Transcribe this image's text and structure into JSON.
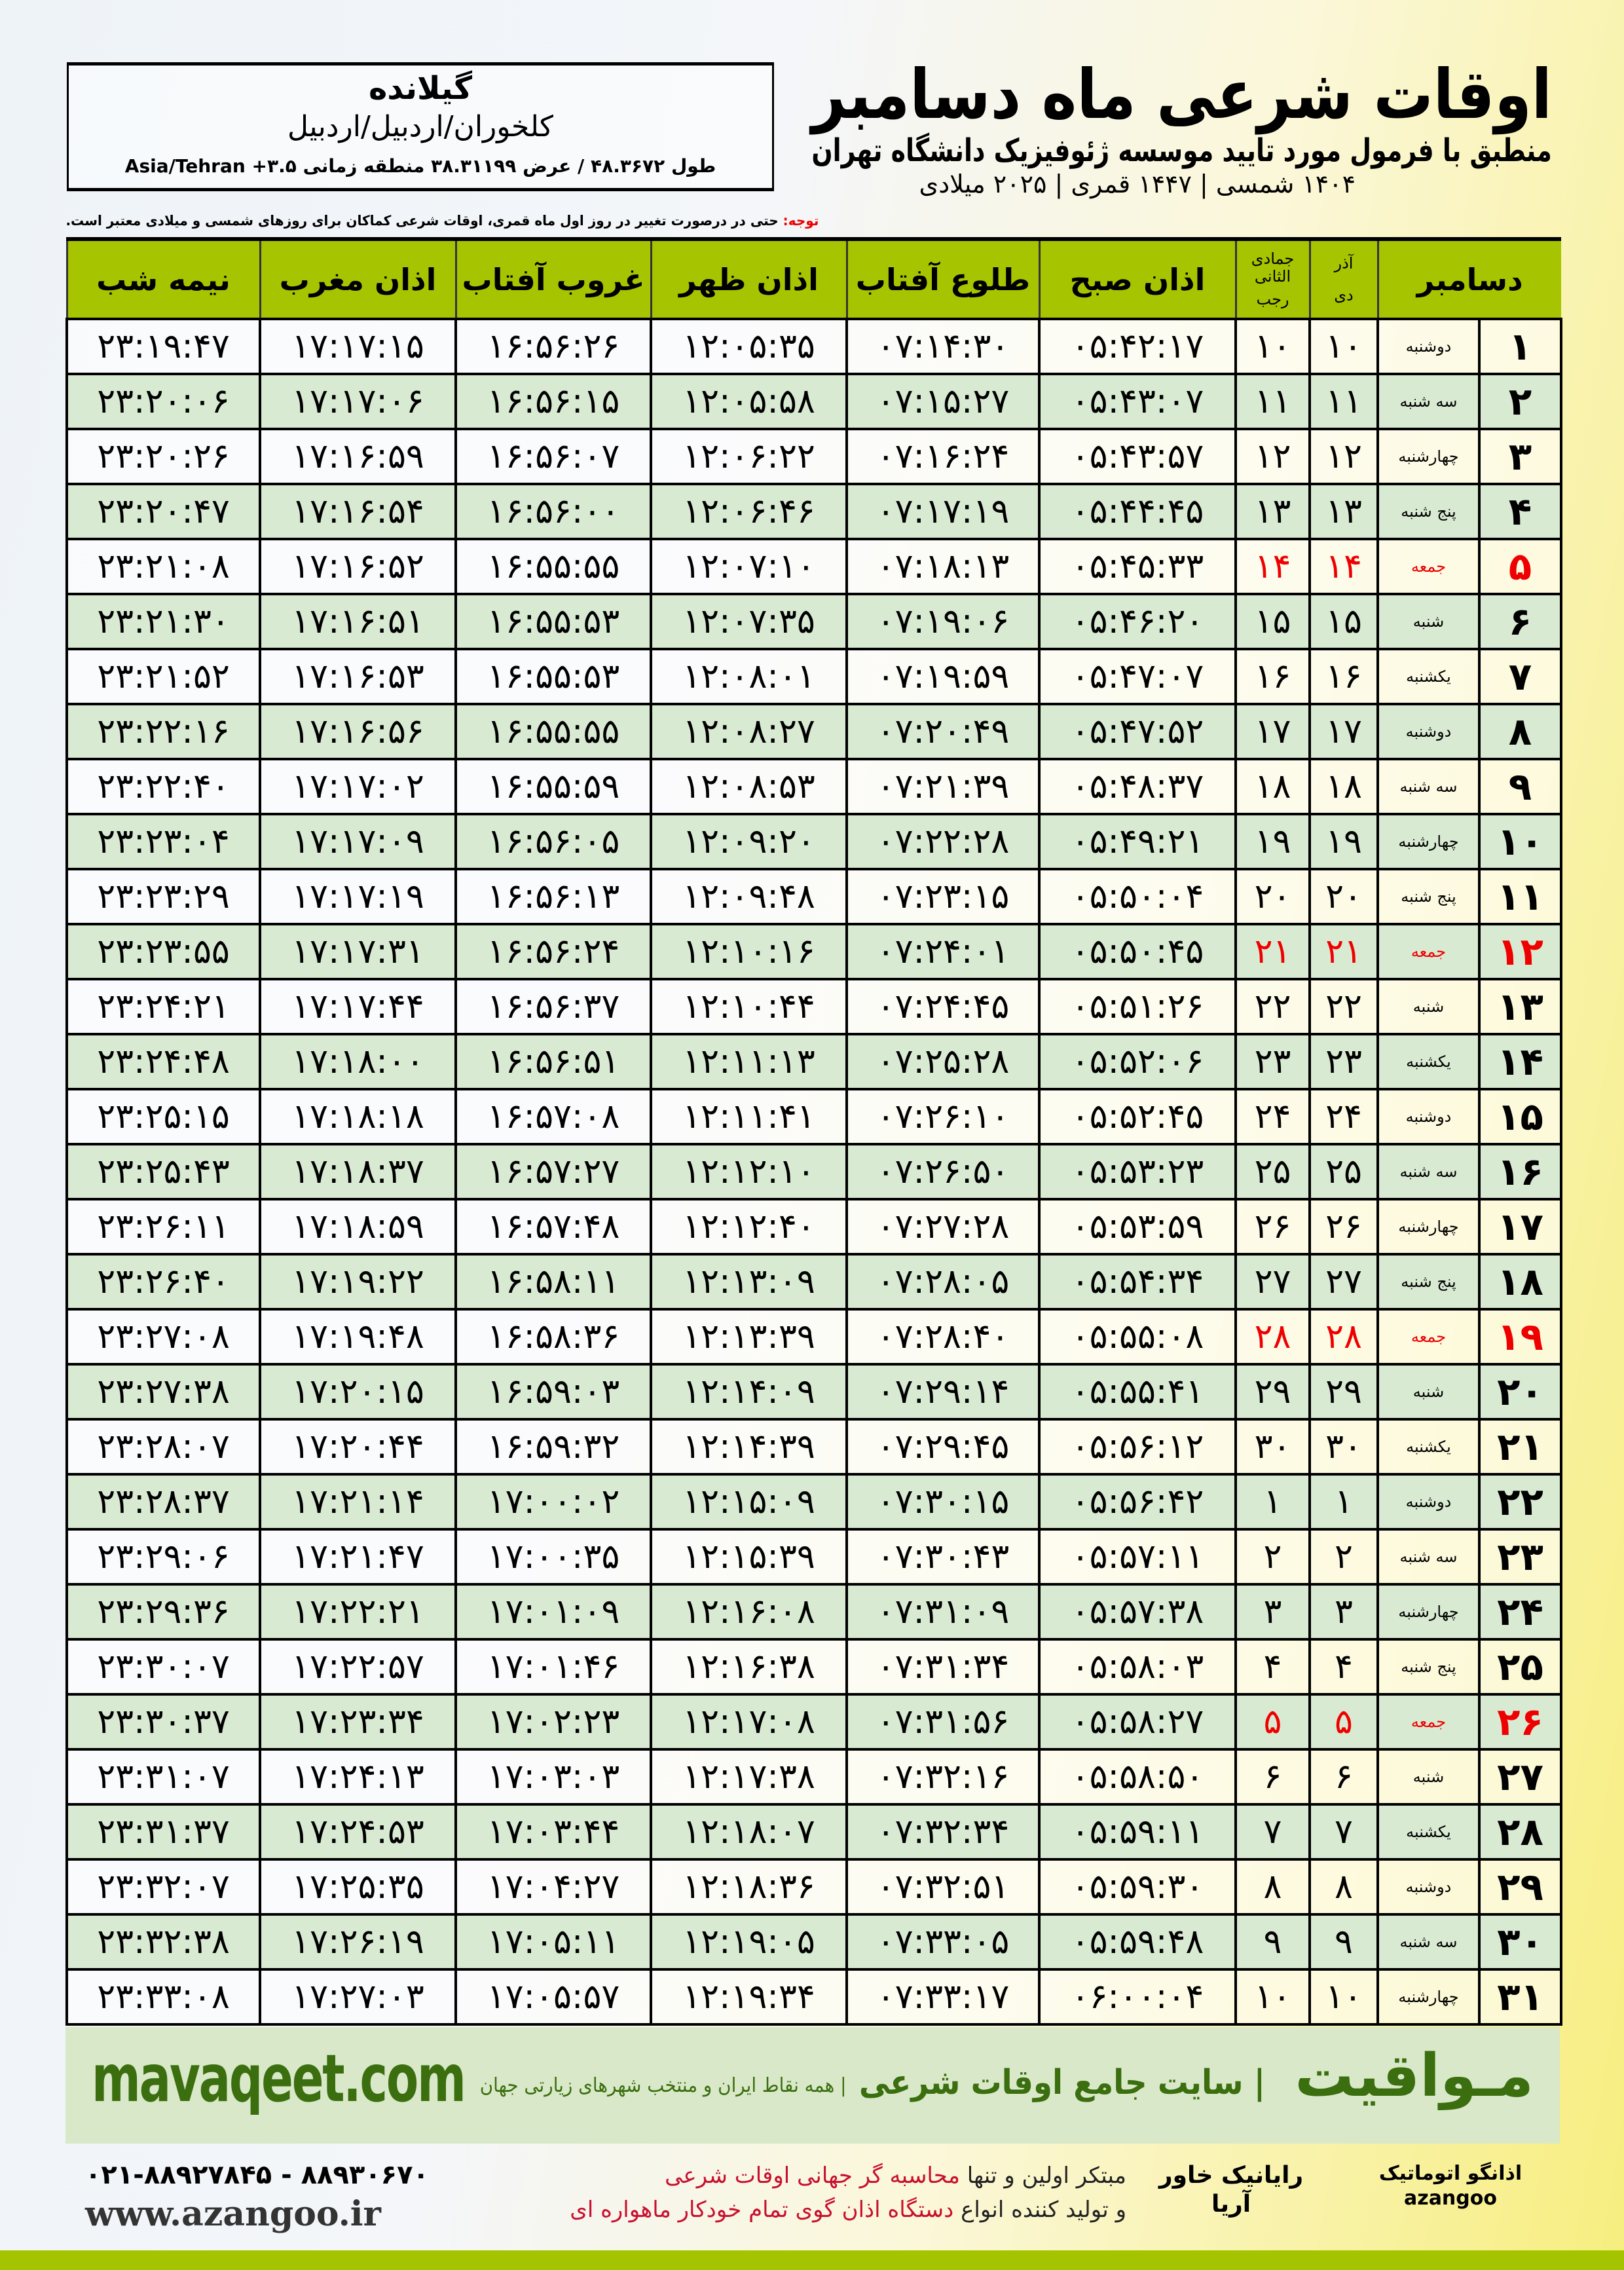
{
  "header": {
    "title": "اوقات شرعی ماه دسامبر",
    "subtitle": "منطبق با فرمول مورد تایید موسسه ژئوفیزیک دانشگاه تهران",
    "years": "۱۴۰۴ شمسی | ۱۴۴۷ قمری | ۲۰۲۵ میلادی"
  },
  "location": {
    "city": "گیلانده",
    "path": "کلخوران/اردبیل/اردبیل",
    "geo": "طول ۴۸.۳۶۷۲ / عرض ۳۸.۳۱۱۹۹ منطقه زمانی ۳.۵+ Asia/Tehran"
  },
  "note": {
    "label": "توجه:",
    "text": " حتی در درصورت تغییر در روز اول ماه قمری، اوقات شرعی کماکان برای روزهای شمسی و میلادی معتبر است."
  },
  "table": {
    "headers": {
      "month": "دسامبر",
      "shamsi_top": "آذر",
      "shamsi_bottom": "دی",
      "qamari_top": "جمادی الثانی",
      "qamari_bottom": "رجب",
      "sobh": "اذان صبح",
      "tolu": "طلوع آفتاب",
      "zohr": "اذان ظهر",
      "ghorub": "غروب آفتاب",
      "maghrib": "اذان مغرب",
      "nimeshab": "نیمه شب"
    },
    "rows": [
      [
        "۱",
        "دوشنبه",
        "۱۰",
        "۱۰",
        "۰۵:۴۲:۱۷",
        "۰۷:۱۴:۳۰",
        "۱۲:۰۵:۳۵",
        "۱۶:۵۶:۲۶",
        "۱۷:۱۷:۱۵",
        "۲۳:۱۹:۴۷"
      ],
      [
        "۲",
        "سه شنبه",
        "۱۱",
        "۱۱",
        "۰۵:۴۳:۰۷",
        "۰۷:۱۵:۲۷",
        "۱۲:۰۵:۵۸",
        "۱۶:۵۶:۱۵",
        "۱۷:۱۷:۰۶",
        "۲۳:۲۰:۰۶"
      ],
      [
        "۳",
        "چهارشنبه",
        "۱۲",
        "۱۲",
        "۰۵:۴۳:۵۷",
        "۰۷:۱۶:۲۴",
        "۱۲:۰۶:۲۲",
        "۱۶:۵۶:۰۷",
        "۱۷:۱۶:۵۹",
        "۲۳:۲۰:۲۶"
      ],
      [
        "۴",
        "پنج شنبه",
        "۱۳",
        "۱۳",
        "۰۵:۴۴:۴۵",
        "۰۷:۱۷:۱۹",
        "۱۲:۰۶:۴۶",
        "۱۶:۵۶:۰۰",
        "۱۷:۱۶:۵۴",
        "۲۳:۲۰:۴۷"
      ],
      [
        "۵",
        "جمعه",
        "۱۴",
        "۱۴",
        "۰۵:۴۵:۳۳",
        "۰۷:۱۸:۱۳",
        "۱۲:۰۷:۱۰",
        "۱۶:۵۵:۵۵",
        "۱۷:۱۶:۵۲",
        "۲۳:۲۱:۰۸"
      ],
      [
        "۶",
        "شنبه",
        "۱۵",
        "۱۵",
        "۰۵:۴۶:۲۰",
        "۰۷:۱۹:۰۶",
        "۱۲:۰۷:۳۵",
        "۱۶:۵۵:۵۳",
        "۱۷:۱۶:۵۱",
        "۲۳:۲۱:۳۰"
      ],
      [
        "۷",
        "یکشنبه",
        "۱۶",
        "۱۶",
        "۰۵:۴۷:۰۷",
        "۰۷:۱۹:۵۹",
        "۱۲:۰۸:۰۱",
        "۱۶:۵۵:۵۳",
        "۱۷:۱۶:۵۳",
        "۲۳:۲۱:۵۲"
      ],
      [
        "۸",
        "دوشنبه",
        "۱۷",
        "۱۷",
        "۰۵:۴۷:۵۲",
        "۰۷:۲۰:۴۹",
        "۱۲:۰۸:۲۷",
        "۱۶:۵۵:۵۵",
        "۱۷:۱۶:۵۶",
        "۲۳:۲۲:۱۶"
      ],
      [
        "۹",
        "سه شنبه",
        "۱۸",
        "۱۸",
        "۰۵:۴۸:۳۷",
        "۰۷:۲۱:۳۹",
        "۱۲:۰۸:۵۳",
        "۱۶:۵۵:۵۹",
        "۱۷:۱۷:۰۲",
        "۲۳:۲۲:۴۰"
      ],
      [
        "۱۰",
        "چهارشنبه",
        "۱۹",
        "۱۹",
        "۰۵:۴۹:۲۱",
        "۰۷:۲۲:۲۸",
        "۱۲:۰۹:۲۰",
        "۱۶:۵۶:۰۵",
        "۱۷:۱۷:۰۹",
        "۲۳:۲۳:۰۴"
      ],
      [
        "۱۱",
        "پنج شنبه",
        "۲۰",
        "۲۰",
        "۰۵:۵۰:۰۴",
        "۰۷:۲۳:۱۵",
        "۱۲:۰۹:۴۸",
        "۱۶:۵۶:۱۳",
        "۱۷:۱۷:۱۹",
        "۲۳:۲۳:۲۹"
      ],
      [
        "۱۲",
        "جمعه",
        "۲۱",
        "۲۱",
        "۰۵:۵۰:۴۵",
        "۰۷:۲۴:۰۱",
        "۱۲:۱۰:۱۶",
        "۱۶:۵۶:۲۴",
        "۱۷:۱۷:۳۱",
        "۲۳:۲۳:۵۵"
      ],
      [
        "۱۳",
        "شنبه",
        "۲۲",
        "۲۲",
        "۰۵:۵۱:۲۶",
        "۰۷:۲۴:۴۵",
        "۱۲:۱۰:۴۴",
        "۱۶:۵۶:۳۷",
        "۱۷:۱۷:۴۴",
        "۲۳:۲۴:۲۱"
      ],
      [
        "۱۴",
        "یکشنبه",
        "۲۳",
        "۲۳",
        "۰۵:۵۲:۰۶",
        "۰۷:۲۵:۲۸",
        "۱۲:۱۱:۱۳",
        "۱۶:۵۶:۵۱",
        "۱۷:۱۸:۰۰",
        "۲۳:۲۴:۴۸"
      ],
      [
        "۱۵",
        "دوشنبه",
        "۲۴",
        "۲۴",
        "۰۵:۵۲:۴۵",
        "۰۷:۲۶:۱۰",
        "۱۲:۱۱:۴۱",
        "۱۶:۵۷:۰۸",
        "۱۷:۱۸:۱۸",
        "۲۳:۲۵:۱۵"
      ],
      [
        "۱۶",
        "سه شنبه",
        "۲۵",
        "۲۵",
        "۰۵:۵۳:۲۳",
        "۰۷:۲۶:۵۰",
        "۱۲:۱۲:۱۰",
        "۱۶:۵۷:۲۷",
        "۱۷:۱۸:۳۷",
        "۲۳:۲۵:۴۳"
      ],
      [
        "۱۷",
        "چهارشنبه",
        "۲۶",
        "۲۶",
        "۰۵:۵۳:۵۹",
        "۰۷:۲۷:۲۸",
        "۱۲:۱۲:۴۰",
        "۱۶:۵۷:۴۸",
        "۱۷:۱۸:۵۹",
        "۲۳:۲۶:۱۱"
      ],
      [
        "۱۸",
        "پنج شنبه",
        "۲۷",
        "۲۷",
        "۰۵:۵۴:۳۴",
        "۰۷:۲۸:۰۵",
        "۱۲:۱۳:۰۹",
        "۱۶:۵۸:۱۱",
        "۱۷:۱۹:۲۲",
        "۲۳:۲۶:۴۰"
      ],
      [
        "۱۹",
        "جمعه",
        "۲۸",
        "۲۸",
        "۰۵:۵۵:۰۸",
        "۰۷:۲۸:۴۰",
        "۱۲:۱۳:۳۹",
        "۱۶:۵۸:۳۶",
        "۱۷:۱۹:۴۸",
        "۲۳:۲۷:۰۸"
      ],
      [
        "۲۰",
        "شنبه",
        "۲۹",
        "۲۹",
        "۰۵:۵۵:۴۱",
        "۰۷:۲۹:۱۴",
        "۱۲:۱۴:۰۹",
        "۱۶:۵۹:۰۳",
        "۱۷:۲۰:۱۵",
        "۲۳:۲۷:۳۸"
      ],
      [
        "۲۱",
        "یکشنبه",
        "۳۰",
        "۳۰",
        "۰۵:۵۶:۱۲",
        "۰۷:۲۹:۴۵",
        "۱۲:۱۴:۳۹",
        "۱۶:۵۹:۳۲",
        "۱۷:۲۰:۴۴",
        "۲۳:۲۸:۰۷"
      ],
      [
        "۲۲",
        "دوشنبه",
        "۱",
        "۱",
        "۰۵:۵۶:۴۲",
        "۰۷:۳۰:۱۵",
        "۱۲:۱۵:۰۹",
        "۱۷:۰۰:۰۲",
        "۱۷:۲۱:۱۴",
        "۲۳:۲۸:۳۷"
      ],
      [
        "۲۳",
        "سه شنبه",
        "۲",
        "۲",
        "۰۵:۵۷:۱۱",
        "۰۷:۳۰:۴۳",
        "۱۲:۱۵:۳۹",
        "۱۷:۰۰:۳۵",
        "۱۷:۲۱:۴۷",
        "۲۳:۲۹:۰۶"
      ],
      [
        "۲۴",
        "چهارشنبه",
        "۳",
        "۳",
        "۰۵:۵۷:۳۸",
        "۰۷:۳۱:۰۹",
        "۱۲:۱۶:۰۸",
        "۱۷:۰۱:۰۹",
        "۱۷:۲۲:۲۱",
        "۲۳:۲۹:۳۶"
      ],
      [
        "۲۵",
        "پنج شنبه",
        "۴",
        "۴",
        "۰۵:۵۸:۰۳",
        "۰۷:۳۱:۳۴",
        "۱۲:۱۶:۳۸",
        "۱۷:۰۱:۴۶",
        "۱۷:۲۲:۵۷",
        "۲۳:۳۰:۰۷"
      ],
      [
        "۲۶",
        "جمعه",
        "۵",
        "۵",
        "۰۵:۵۸:۲۷",
        "۰۷:۳۱:۵۶",
        "۱۲:۱۷:۰۸",
        "۱۷:۰۲:۲۳",
        "۱۷:۲۳:۳۴",
        "۲۳:۳۰:۳۷"
      ],
      [
        "۲۷",
        "شنبه",
        "۶",
        "۶",
        "۰۵:۵۸:۵۰",
        "۰۷:۳۲:۱۶",
        "۱۲:۱۷:۳۸",
        "۱۷:۰۳:۰۳",
        "۱۷:۲۴:۱۳",
        "۲۳:۳۱:۰۷"
      ],
      [
        "۲۸",
        "یکشنبه",
        "۷",
        "۷",
        "۰۵:۵۹:۱۱",
        "۰۷:۳۲:۳۴",
        "۱۲:۱۸:۰۷",
        "۱۷:۰۳:۴۴",
        "۱۷:۲۴:۵۳",
        "۲۳:۳۱:۳۷"
      ],
      [
        "۲۹",
        "دوشنبه",
        "۸",
        "۸",
        "۰۵:۵۹:۳۰",
        "۰۷:۳۲:۵۱",
        "۱۲:۱۸:۳۶",
        "۱۷:۰۴:۲۷",
        "۱۷:۲۵:۳۵",
        "۲۳:۳۲:۰۷"
      ],
      [
        "۳۰",
        "سه شنبه",
        "۹",
        "۹",
        "۰۵:۵۹:۴۸",
        "۰۷:۳۳:۰۵",
        "۱۲:۱۹:۰۵",
        "۱۷:۰۵:۱۱",
        "۱۷:۲۶:۱۹",
        "۲۳:۳۲:۳۸"
      ],
      [
        "۳۱",
        "چهارشنبه",
        "۱۰",
        "۱۰",
        "۰۶:۰۰:۰۴",
        "۰۷:۳۳:۱۷",
        "۱۲:۱۹:۳۴",
        "۱۷:۰۵:۵۷",
        "۱۷:۲۷:۰۳",
        "۲۳:۳۳:۰۸"
      ]
    ],
    "friday_label": "جمعه",
    "colors": {
      "header": "#a7c400",
      "even_row": "#d9ead3",
      "friday": "#ee0000"
    }
  },
  "footer": {
    "brand": "مـواقیت",
    "slogan": "| سایت جامع اوقات شرعی",
    "slogan2": "| همه نقاط ایران و منتخب شهرهای زیارتی جهان",
    "site": "mavaqeet.com",
    "ad_line1_a": "مبتکر اولین و تنها ",
    "ad_line1_b": "محاسبه گر جهانی اوقات شرعی",
    "ad_line2_a": "و تولید کننده انواع ",
    "ad_line2_b": "دستگاه اذان گوی تمام خودکار ماهواره ای",
    "phones": "۰۲۱-۸۸۹۲۷۸۴۵ - ۸۸۹۳۰۶۷۰",
    "web": "www.azangoo.ir",
    "logo1": "رایانیک خاور آریا",
    "logo2": "اذانگو اتوماتیک azangoo"
  }
}
